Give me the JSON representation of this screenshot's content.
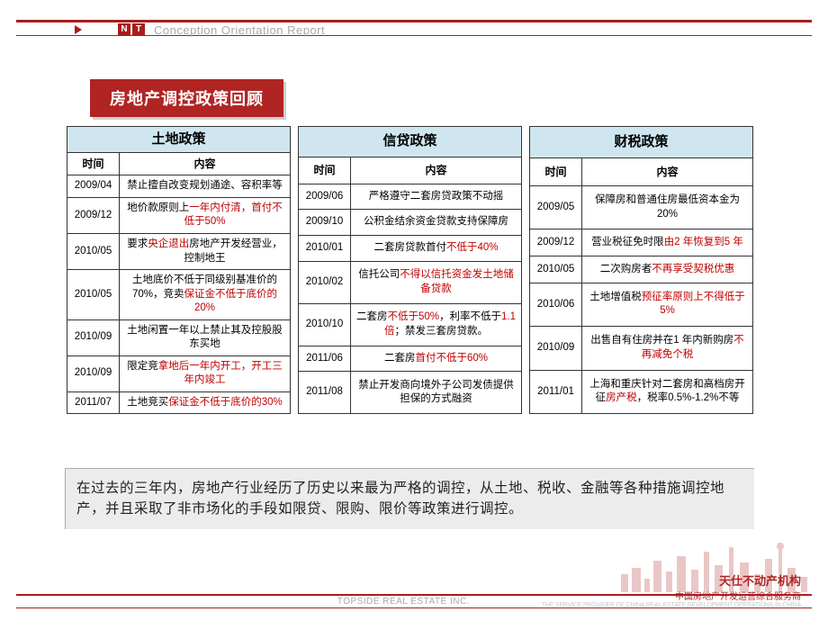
{
  "header": {
    "title_en": "Conception Orientation Report",
    "icon_letters": [
      "N",
      "T"
    ]
  },
  "section_title": "房地产调控政策回顾",
  "columns": {
    "time_label": "时间",
    "content_label": "内容"
  },
  "tables": [
    {
      "category": "土地政策",
      "rows": [
        {
          "time": "2009/04",
          "segments": [
            {
              "t": "禁止擅自改变规划通途、容积率等"
            }
          ]
        },
        {
          "time": "2009/12",
          "segments": [
            {
              "t": "地价款原则上"
            },
            {
              "t": "一年内付清，首付不低于50%",
              "hl": true
            }
          ]
        },
        {
          "time": "2010/05",
          "segments": [
            {
              "t": "要求"
            },
            {
              "t": "央企退出",
              "hl": true
            },
            {
              "t": "房地产开发经营业，控制地王"
            }
          ]
        },
        {
          "time": "2010/05",
          "segments": [
            {
              "t": "土地底价不低于同级别基准价的70%，竞卖"
            },
            {
              "t": "保证金不低于底价的20%",
              "hl": true
            }
          ]
        },
        {
          "time": "2010/09",
          "segments": [
            {
              "t": "土地闲置一年以上禁止其及控股股东买地"
            }
          ]
        },
        {
          "time": "2010/09",
          "segments": [
            {
              "t": "限定竞"
            },
            {
              "t": "拿地后一年内开工，开工三年内竣工",
              "hl": true
            }
          ]
        },
        {
          "time": "2011/07",
          "segments": [
            {
              "t": "土地竞买"
            },
            {
              "t": "保证金不低于底价的30%",
              "hl": true
            }
          ]
        }
      ]
    },
    {
      "category": "信贷政策",
      "rows": [
        {
          "time": "2009/06",
          "segments": [
            {
              "t": "严格遵守二套房贷政策不动摇"
            }
          ]
        },
        {
          "time": "2009/10",
          "segments": [
            {
              "t": "公积金结余资金贷款支持保障房"
            }
          ]
        },
        {
          "time": "2010/01",
          "segments": [
            {
              "t": "二套房贷款首付"
            },
            {
              "t": "不低于40%",
              "hl": true
            }
          ]
        },
        {
          "time": "2010/02",
          "segments": [
            {
              "t": "信托公司"
            },
            {
              "t": "不得以信托资金发土地储备贷款",
              "hl": true
            }
          ]
        },
        {
          "time": "2010/10",
          "segments": [
            {
              "t": "二套房"
            },
            {
              "t": "不低于50%",
              "hl": true
            },
            {
              "t": "，利率不低于"
            },
            {
              "t": "1.1 倍",
              "hl": true
            },
            {
              "t": "；禁发三套房贷款。"
            }
          ]
        },
        {
          "time": "2011/06",
          "segments": [
            {
              "t": "二套房"
            },
            {
              "t": "首付不低于60%",
              "hl": true
            }
          ]
        },
        {
          "time": "2011/08",
          "segments": [
            {
              "t": "禁止开发商向境外子公司发债提供担保的方式融资"
            }
          ]
        }
      ]
    },
    {
      "category": "财税政策",
      "rows": [
        {
          "time": "2009/05",
          "segments": [
            {
              "t": "保障房和普通住房最低资本金为20%"
            }
          ]
        },
        {
          "time": "2009/12",
          "segments": [
            {
              "t": "营业税征免时限"
            },
            {
              "t": "由2 年恢复到5 年",
              "hl": true
            }
          ]
        },
        {
          "time": "2010/05",
          "segments": [
            {
              "t": "二次购房者"
            },
            {
              "t": "不再享受契税优惠",
              "hl": true
            }
          ]
        },
        {
          "time": "2010/06",
          "segments": [
            {
              "t": "土地增值税"
            },
            {
              "t": "预征率原则上不得低于5%",
              "hl": true
            }
          ]
        },
        {
          "time": "2010/09",
          "segments": [
            {
              "t": "出售自有住房并在1 年内新购房"
            },
            {
              "t": "不再减免个税",
              "hl": true
            }
          ]
        },
        {
          "time": "2011/01",
          "rowspan": 2,
          "segments": [
            {
              "t": "上海和重庆针对二套房和高档房开征"
            },
            {
              "t": "房产税",
              "hl": true
            },
            {
              "t": "，税率0.5%-1.2%不等"
            }
          ]
        }
      ]
    }
  ],
  "summary": "在过去的三年内，房地产行业经历了历史以来最为严格的调控，从土地、税收、金融等各种措施调控地产，并且采取了非市场化的手段如限贷、限购、限价等政策进行调控。",
  "footer": {
    "company_en": "TOPSIDE REAL ESTATE INC.",
    "logo_cn": "天仕不动产机构",
    "logo_sub": "中国房地产开发运营综合服务商",
    "logo_en": "THE SERVICE PROVIDER OF CHINA REAL ESTATE DEVELOPMENT OPERATIONS IN CHINA"
  },
  "styling": {
    "accent_color": "#a81d1d",
    "title_bg": "#b02424",
    "table_header_bg": "#cfe6f0",
    "highlight_color": "#c00000",
    "summary_bg": "#ececec",
    "body_font_size": 11.5,
    "title_font_size": 18,
    "summary_font_size": 15.5
  }
}
